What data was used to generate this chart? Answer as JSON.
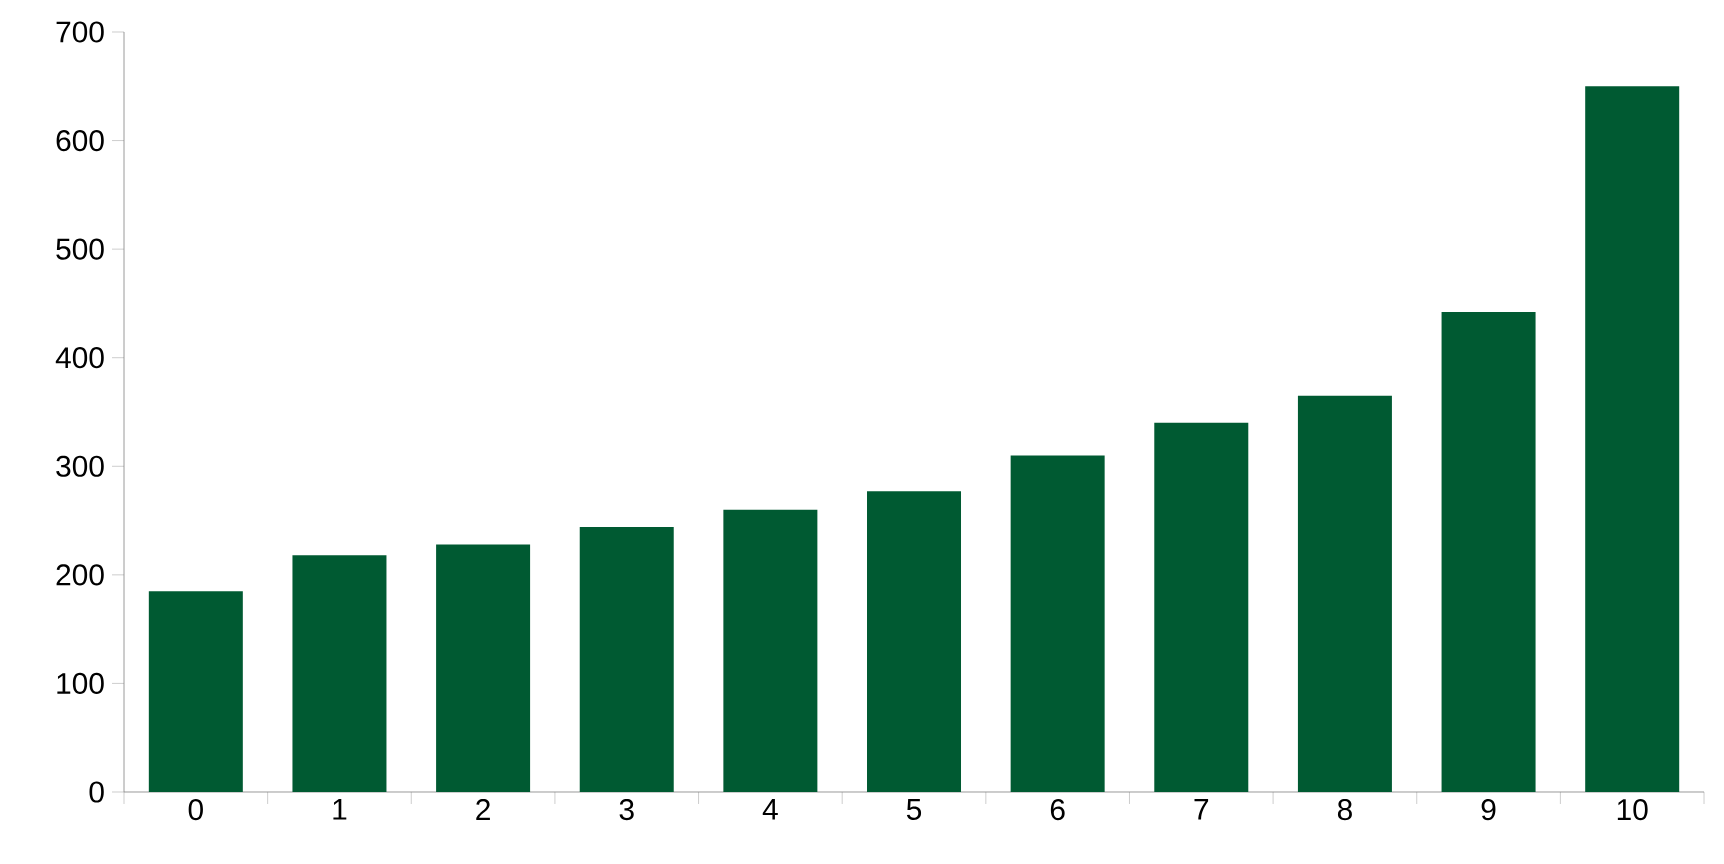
{
  "chart_data": {
    "type": "bar",
    "categories": [
      "0",
      "1",
      "2",
      "3",
      "4",
      "5",
      "6",
      "7",
      "8",
      "9",
      "10"
    ],
    "values": [
      185,
      218,
      228,
      244,
      260,
      277,
      310,
      340,
      365,
      442,
      650
    ],
    "color": "#005a32",
    "ylim": [
      0,
      700
    ],
    "yticks": [
      0,
      100,
      200,
      300,
      400,
      500,
      600,
      700
    ],
    "grid": false
  }
}
